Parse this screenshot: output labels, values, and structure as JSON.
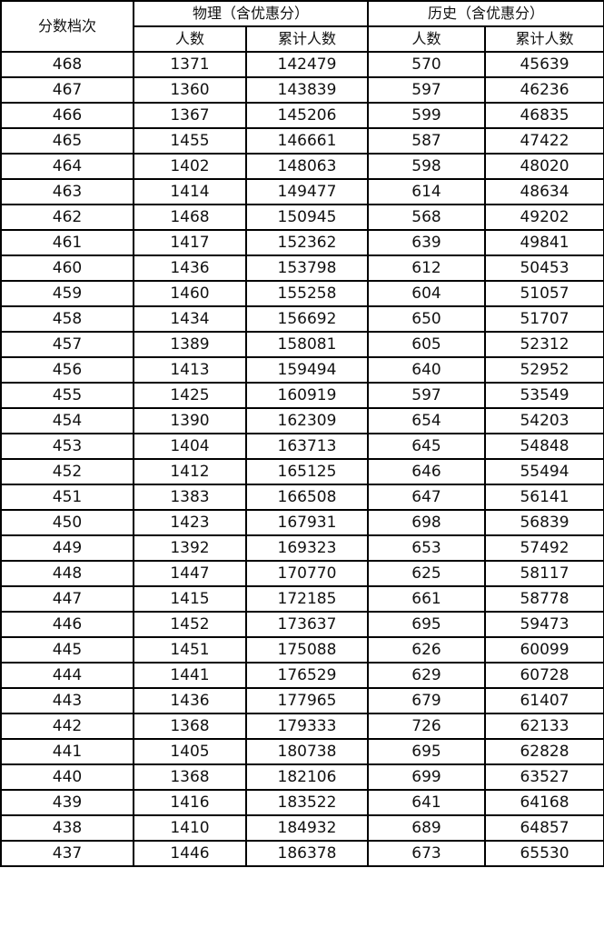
{
  "header": {
    "score_level": "分数档次",
    "physics": "物理（含优惠分）",
    "history": "历史（含优惠分）",
    "count": "人数",
    "cumulative": "累计人数"
  },
  "columns": [
    "score",
    "physics_count",
    "physics_cumulative",
    "history_count",
    "history_cumulative"
  ],
  "rows": [
    [
      "468",
      "1371",
      "142479",
      "570",
      "45639"
    ],
    [
      "467",
      "1360",
      "143839",
      "597",
      "46236"
    ],
    [
      "466",
      "1367",
      "145206",
      "599",
      "46835"
    ],
    [
      "465",
      "1455",
      "146661",
      "587",
      "47422"
    ],
    [
      "464",
      "1402",
      "148063",
      "598",
      "48020"
    ],
    [
      "463",
      "1414",
      "149477",
      "614",
      "48634"
    ],
    [
      "462",
      "1468",
      "150945",
      "568",
      "49202"
    ],
    [
      "461",
      "1417",
      "152362",
      "639",
      "49841"
    ],
    [
      "460",
      "1436",
      "153798",
      "612",
      "50453"
    ],
    [
      "459",
      "1460",
      "155258",
      "604",
      "51057"
    ],
    [
      "458",
      "1434",
      "156692",
      "650",
      "51707"
    ],
    [
      "457",
      "1389",
      "158081",
      "605",
      "52312"
    ],
    [
      "456",
      "1413",
      "159494",
      "640",
      "52952"
    ],
    [
      "455",
      "1425",
      "160919",
      "597",
      "53549"
    ],
    [
      "454",
      "1390",
      "162309",
      "654",
      "54203"
    ],
    [
      "453",
      "1404",
      "163713",
      "645",
      "54848"
    ],
    [
      "452",
      "1412",
      "165125",
      "646",
      "55494"
    ],
    [
      "451",
      "1383",
      "166508",
      "647",
      "56141"
    ],
    [
      "450",
      "1423",
      "167931",
      "698",
      "56839"
    ],
    [
      "449",
      "1392",
      "169323",
      "653",
      "57492"
    ],
    [
      "448",
      "1447",
      "170770",
      "625",
      "58117"
    ],
    [
      "447",
      "1415",
      "172185",
      "661",
      "58778"
    ],
    [
      "446",
      "1452",
      "173637",
      "695",
      "59473"
    ],
    [
      "445",
      "1451",
      "175088",
      "626",
      "60099"
    ],
    [
      "444",
      "1441",
      "176529",
      "629",
      "60728"
    ],
    [
      "443",
      "1436",
      "177965",
      "679",
      "61407"
    ],
    [
      "442",
      "1368",
      "179333",
      "726",
      "62133"
    ],
    [
      "441",
      "1405",
      "180738",
      "695",
      "62828"
    ],
    [
      "440",
      "1368",
      "182106",
      "699",
      "63527"
    ],
    [
      "439",
      "1416",
      "183522",
      "641",
      "64168"
    ],
    [
      "438",
      "1410",
      "184932",
      "689",
      "64857"
    ],
    [
      "437",
      "1446",
      "186378",
      "673",
      "65530"
    ]
  ]
}
